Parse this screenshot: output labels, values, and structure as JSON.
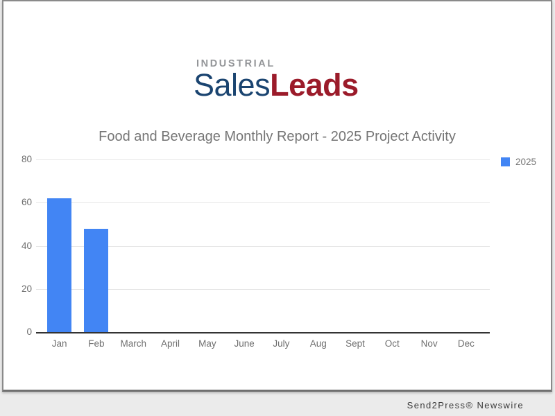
{
  "page": {
    "background_color": "#ebebeb",
    "card_background": "#ffffff",
    "card_border_color": "#8a8a8a"
  },
  "logo": {
    "industrial": "INDUSTRIAL",
    "sales": "Sales",
    "leads": "Leads",
    "industrial_color": "#939598",
    "sales_color": "#1a4470",
    "leads_color": "#9b1b2a"
  },
  "chart_data": {
    "type": "bar",
    "title": "Food and Beverage Monthly Report - 2025 Project Activity",
    "title_color": "#757575",
    "categories": [
      "Jan",
      "Feb",
      "March",
      "April",
      "May",
      "June",
      "July",
      "Aug",
      "Sept",
      "Oct",
      "Nov",
      "Dec"
    ],
    "series": [
      {
        "name": "2025",
        "color": "#4285f4",
        "values": [
          62,
          48,
          0,
          0,
          0,
          0,
          0,
          0,
          0,
          0,
          0,
          0
        ]
      }
    ],
    "xlabel": "",
    "ylabel": "",
    "ylim": [
      0,
      80
    ],
    "yticks": [
      0,
      20,
      40,
      60,
      80
    ],
    "grid": true,
    "gridline_color": "#e6e6e6",
    "baseline_color": "#333333",
    "axis_label_color": "#6e6e6e",
    "legend_position": "right-top"
  },
  "footer": {
    "credit": "Send2Press® Newswire"
  }
}
